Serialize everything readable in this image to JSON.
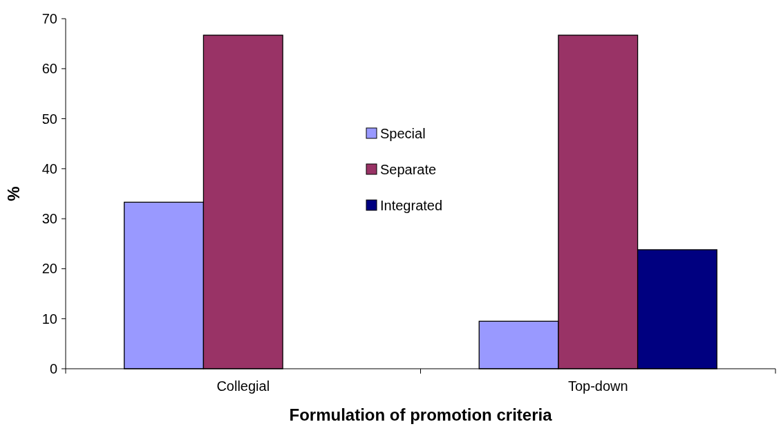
{
  "chart_data": {
    "type": "bar",
    "xlabel": "Formulation of promotion criteria",
    "ylabel": "%",
    "categories": [
      "Collegial",
      "Top-down"
    ],
    "series": [
      {
        "name": "Special",
        "color": "#9999ff",
        "values": [
          33.3,
          9.5
        ]
      },
      {
        "name": "Separate",
        "color": "#993366",
        "values": [
          66.7,
          66.7
        ]
      },
      {
        "name": "Integrated",
        "color": "#000080",
        "values": [
          null,
          23.8
        ]
      }
    ],
    "ylim": [
      0,
      70
    ],
    "yticks": [
      0,
      10,
      20,
      30,
      40,
      50,
      60,
      70
    ],
    "grid": false,
    "legend": "center"
  }
}
